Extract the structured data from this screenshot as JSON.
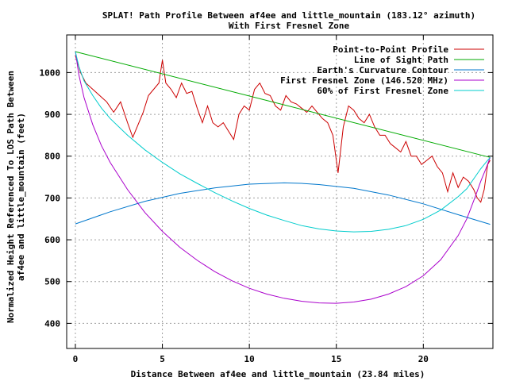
{
  "chart_data": {
    "type": "line",
    "title": "SPLAT! Path Profile Between af4ee and little_mountain (183.12° azimuth)",
    "subtitle": "With First Fresnel Zone",
    "xlabel": "Distance Between af4ee and little_mountain (23.84 miles)",
    "ylabel_line1": "Normalized Height Referenced To LOS Path Between",
    "ylabel_line2": "af4ee and little_mountain (feet)",
    "xlim": [
      -0.5,
      24.0
    ],
    "ylim": [
      340,
      1090
    ],
    "x_ticks": [
      0,
      5,
      10,
      15,
      20
    ],
    "y_ticks": [
      400,
      500,
      600,
      700,
      800,
      900,
      1000
    ],
    "x_tick_labels": [
      "0",
      "5",
      "10",
      "15",
      "20"
    ],
    "y_tick_labels": [
      "400",
      "500",
      "600",
      "700",
      "800",
      "900",
      "1000"
    ],
    "grid": true,
    "legend_position": "top-right",
    "series": [
      {
        "name": "Point-to-Point Profile",
        "color": "#cc0000",
        "x": [
          0,
          0.3,
          0.6,
          1.0,
          1.4,
          1.8,
          2.2,
          2.6,
          3.0,
          3.3,
          3.6,
          3.9,
          4.2,
          4.5,
          4.8,
          5.0,
          5.2,
          5.5,
          5.8,
          6.1,
          6.4,
          6.7,
          7.0,
          7.3,
          7.6,
          7.9,
          8.2,
          8.5,
          8.8,
          9.1,
          9.4,
          9.7,
          10.0,
          10.3,
          10.6,
          10.9,
          11.2,
          11.5,
          11.8,
          12.1,
          12.4,
          12.7,
          13.0,
          13.3,
          13.6,
          13.9,
          14.2,
          14.5,
          14.8,
          15.1,
          15.4,
          15.7,
          16.0,
          16.3,
          16.6,
          16.9,
          17.2,
          17.5,
          17.8,
          18.1,
          18.4,
          18.7,
          19.0,
          19.3,
          19.6,
          19.9,
          20.2,
          20.5,
          20.8,
          21.1,
          21.4,
          21.7,
          22.0,
          22.3,
          22.6,
          22.9,
          23.1,
          23.3,
          23.5,
          23.7,
          23.84
        ],
        "y": [
          1040,
          1000,
          975,
          960,
          945,
          930,
          905,
          930,
          880,
          845,
          875,
          905,
          945,
          960,
          975,
          1030,
          975,
          960,
          940,
          975,
          950,
          955,
          915,
          880,
          920,
          880,
          870,
          880,
          860,
          840,
          900,
          920,
          910,
          960,
          975,
          950,
          945,
          920,
          910,
          945,
          930,
          925,
          915,
          905,
          920,
          905,
          890,
          880,
          850,
          760,
          870,
          920,
          910,
          890,
          880,
          900,
          870,
          850,
          850,
          830,
          820,
          810,
          835,
          800,
          800,
          780,
          790,
          800,
          775,
          760,
          715,
          760,
          725,
          750,
          740,
          720,
          700,
          690,
          720,
          780,
          790
        ]
      },
      {
        "name": "Line of Sight Path",
        "color": "#00aa00",
        "x": [
          0,
          23.84
        ],
        "y": [
          1050,
          797
        ]
      },
      {
        "name": "Earth's Curvature Contour",
        "color": "#0077cc",
        "x": [
          0,
          2,
          4,
          6,
          8,
          10,
          12,
          13,
          14,
          16,
          18,
          20,
          22,
          23.84
        ],
        "y": [
          638,
          667,
          692,
          711,
          724,
          733,
          736,
          735,
          732,
          723,
          707,
          686,
          660,
          637
        ]
      },
      {
        "name": "First Fresnel Zone (146.520 MHz)",
        "color": "#aa00cc",
        "x": [
          0,
          0.2,
          0.5,
          1.0,
          1.5,
          2.0,
          3.0,
          4.0,
          5.0,
          6.0,
          7.0,
          8.0,
          9.0,
          10.0,
          11.0,
          12.0,
          13.0,
          14.0,
          15.0,
          16.0,
          17.0,
          18.0,
          19.0,
          20.0,
          21.0,
          22.0,
          22.5,
          23.0,
          23.3,
          23.6,
          23.84
        ],
        "y": [
          1050,
          995,
          940,
          875,
          825,
          785,
          720,
          665,
          620,
          582,
          551,
          524,
          502,
          484,
          470,
          460,
          453,
          449,
          448,
          451,
          458,
          470,
          488,
          514,
          552,
          610,
          650,
          705,
          740,
          770,
          797
        ]
      },
      {
        "name": "60% of First Fresnel Zone",
        "color": "#00cccc",
        "x": [
          0,
          0.2,
          0.5,
          1.0,
          1.5,
          2.0,
          3.0,
          4.0,
          5.0,
          6.0,
          7.0,
          8.0,
          9.0,
          10.0,
          11.0,
          12.0,
          13.0,
          14.0,
          15.0,
          16.0,
          17.0,
          18.0,
          19.0,
          20.0,
          21.0,
          22.0,
          22.5,
          23.0,
          23.3,
          23.6,
          23.84
        ],
        "y": [
          1050,
          1015,
          980,
          945,
          915,
          890,
          850,
          815,
          785,
          758,
          735,
          713,
          693,
          675,
          659,
          646,
          634,
          626,
          621,
          619,
          620,
          625,
          634,
          649,
          671,
          703,
          722,
          752,
          770,
          785,
          797
        ]
      }
    ]
  }
}
